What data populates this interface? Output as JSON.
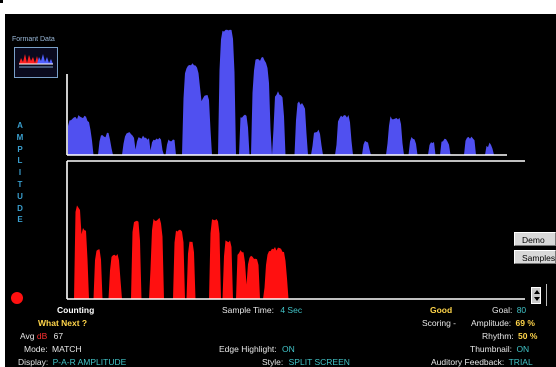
{
  "thumbnail": {
    "label": "Formant Data"
  },
  "axis": {
    "label": "AMPLITUDE"
  },
  "buttons": {
    "demo": "Demo",
    "samples": "Samples"
  },
  "status": {
    "state": "Counting",
    "what_next": "What Next ?",
    "avg_label": "Avg",
    "avg_unit": "dB",
    "avg_value": "67",
    "sample_time_label": "Sample Time:",
    "sample_time_value": "4 Sec",
    "rating": "Good",
    "goal_label": "Goal:",
    "goal_value": "80",
    "scoring_label": "Scoring -",
    "amplitude_label": "Amplitude:",
    "amplitude_value": "69 %",
    "rhythm_label": "Rhythm:",
    "rhythm_value": "50 %",
    "mode_label": "Mode:",
    "mode_value": "MATCH",
    "edge_label": "Edge Highlight:",
    "edge_value": "ON",
    "thumbnail_label": "Thumbnail:",
    "thumbnail_value": "ON",
    "display_label": "Display:",
    "display_value": "P-A-R AMPLITUDE",
    "style_label": "Style:",
    "style_value": "SPLIT SCREEN",
    "feedback_label": "Auditory Feedback:",
    "feedback_value": "TRIAL"
  },
  "colors": {
    "background": "#000000",
    "target_wave": "#5050f0",
    "attempt_wave": "#ff1010",
    "label_cyan": "#41c4c8",
    "label_yellow": "#ffd54a"
  }
}
